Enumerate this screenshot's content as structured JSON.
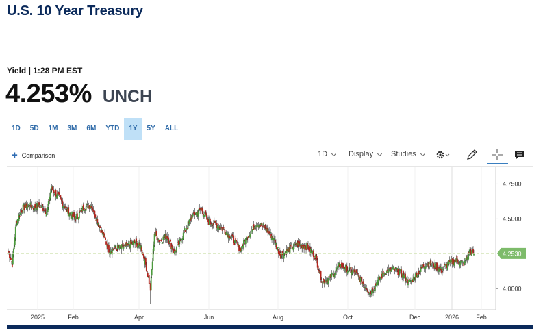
{
  "header": {
    "title": "U.S. 10 Year Treasury"
  },
  "quote": {
    "meta": "Yield | 1:28 PM EST",
    "price": "4.253%",
    "change": "UNCH"
  },
  "ranges": [
    "1D",
    "5D",
    "1M",
    "3M",
    "6M",
    "YTD",
    "1Y",
    "5Y",
    "ALL"
  ],
  "active_range": "1Y",
  "toolbar": {
    "comparison": "Comparison",
    "interval": "1D",
    "display": "Display",
    "studies": "Studies",
    "icons": [
      "settings-gear-icon",
      "draw-pencil-icon",
      "crosshair-icon",
      "comment-icon"
    ]
  },
  "colors": {
    "title": "#0b2a5b",
    "accent": "#2e6aa8",
    "range_active_bg": "#bfe0f7",
    "candle_up": "#4c9b3c",
    "candle_down": "#b3261e",
    "current_price_tag": "#7dbb6a"
  },
  "chart_data": {
    "type": "ohlc",
    "x_tick_labels": [
      "2025",
      "Feb",
      "Apr",
      "Jun",
      "Aug",
      "Oct",
      "Dec",
      "2026",
      "Feb"
    ],
    "y_tick_labels": [
      "4.7500",
      "4.5000",
      "4.0000"
    ],
    "current_value_label": "4.2530",
    "current_value": 4.253,
    "ylim": [
      3.85,
      4.87
    ],
    "grid": "light vertical at month ticks",
    "anchors": [
      [
        0,
        4.27
      ],
      [
        6,
        4.18
      ],
      [
        12,
        4.48
      ],
      [
        22,
        4.58
      ],
      [
        30,
        4.6
      ],
      [
        38,
        4.58
      ],
      [
        46,
        4.6
      ],
      [
        58,
        4.55
      ],
      [
        64,
        4.72
      ],
      [
        76,
        4.65
      ],
      [
        88,
        4.56
      ],
      [
        100,
        4.5
      ],
      [
        112,
        4.58
      ],
      [
        124,
        4.6
      ],
      [
        136,
        4.45
      ],
      [
        150,
        4.28
      ],
      [
        162,
        4.29
      ],
      [
        174,
        4.3
      ],
      [
        188,
        4.33
      ],
      [
        198,
        4.3
      ],
      [
        206,
        4.15
      ],
      [
        212,
        4.0
      ],
      [
        218,
        4.4
      ],
      [
        226,
        4.34
      ],
      [
        236,
        4.38
      ],
      [
        248,
        4.26
      ],
      [
        260,
        4.38
      ],
      [
        274,
        4.52
      ],
      [
        288,
        4.57
      ],
      [
        298,
        4.48
      ],
      [
        310,
        4.46
      ],
      [
        322,
        4.42
      ],
      [
        334,
        4.36
      ],
      [
        346,
        4.28
      ],
      [
        356,
        4.37
      ],
      [
        370,
        4.47
      ],
      [
        382,
        4.44
      ],
      [
        394,
        4.37
      ],
      [
        406,
        4.24
      ],
      [
        418,
        4.28
      ],
      [
        430,
        4.32
      ],
      [
        446,
        4.3
      ],
      [
        458,
        4.23
      ],
      [
        468,
        4.05
      ],
      [
        480,
        4.08
      ],
      [
        494,
        4.17
      ],
      [
        506,
        4.14
      ],
      [
        518,
        4.11
      ],
      [
        530,
        4.03
      ],
      [
        540,
        3.97
      ],
      [
        550,
        4.05
      ],
      [
        562,
        4.12
      ],
      [
        574,
        4.14
      ],
      [
        586,
        4.11
      ],
      [
        598,
        4.04
      ],
      [
        610,
        4.11
      ],
      [
        622,
        4.18
      ],
      [
        634,
        4.17
      ],
      [
        646,
        4.13
      ],
      [
        656,
        4.18
      ],
      [
        668,
        4.2
      ],
      [
        680,
        4.18
      ],
      [
        688,
        4.27
      ],
      [
        694,
        4.253
      ]
    ]
  }
}
